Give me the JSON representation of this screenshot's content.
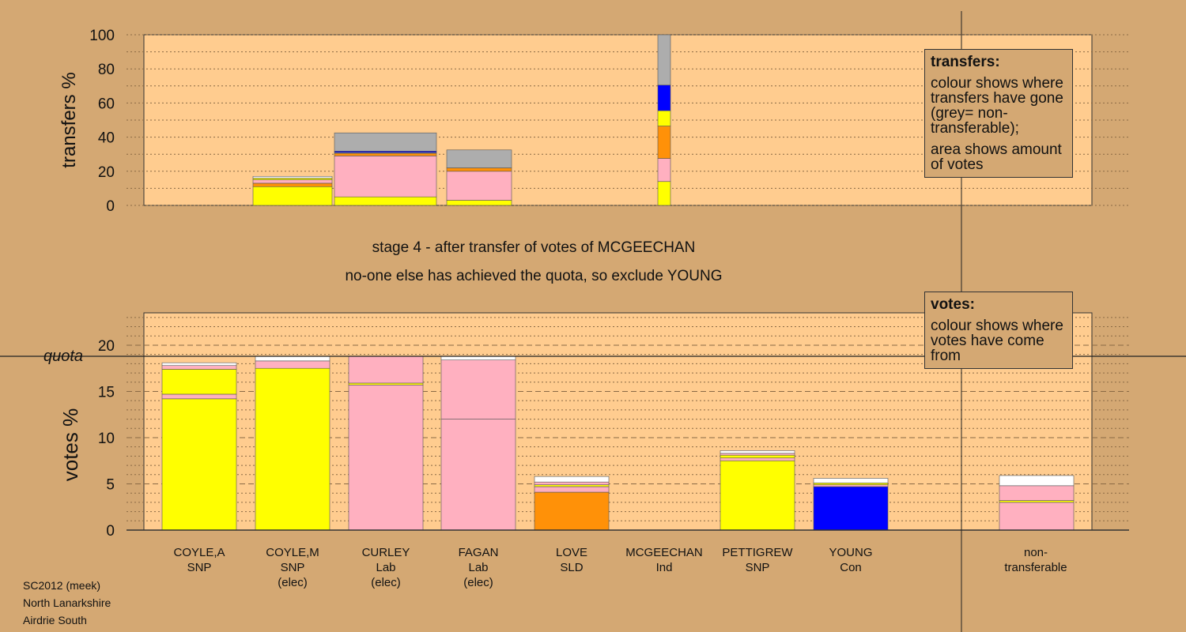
{
  "top_box": {
    "title": "transfers:",
    "line1": "colour shows where transfers have gone (grey= non-transferable);",
    "line2": "area shows amount of votes"
  },
  "bottom_box": {
    "title": "votes:",
    "line1": "colour shows where votes have come from"
  },
  "stage": {
    "line1": "stage 4 - after transfer of votes of MCGEECHAN",
    "line2": "no-one else has achieved the quota, so exclude YOUNG"
  },
  "footer": {
    "line1": "SC2012 (meek)",
    "line2": "North Lanarkshire",
    "line3": "Airdrie South"
  },
  "colors": {
    "background": "#D4A873",
    "plot": "#FFCC8F",
    "SNP": "#FFFF00",
    "Lab": "#FFB0C0",
    "SLD": "#FF9108",
    "Con": "#0000FF",
    "nontransferable": "#ADADAD",
    "other": "#FFFFFF"
  },
  "chart_data": [
    {
      "type": "bar",
      "stacked": true,
      "ylabel": "transfers %",
      "ylim": [
        0,
        100
      ],
      "yticks": [
        0,
        20,
        40,
        60,
        80,
        100
      ],
      "bars": [
        {
          "candidate": "COYLE,M",
          "segments": [
            {
              "color": "SNP",
              "value": 11
            },
            {
              "color": "SLD",
              "value": 2
            },
            {
              "color": "Lab",
              "value": 2
            },
            {
              "color": "SNP",
              "value": 1
            },
            {
              "color": "other",
              "value": 1
            }
          ]
        },
        {
          "candidate": "CURLEY",
          "segments": [
            {
              "color": "SNP",
              "value": 5
            },
            {
              "color": "Lab",
              "value": 24
            },
            {
              "color": "SLD",
              "value": 1.5
            },
            {
              "color": "nontransferable",
              "value": 0.5
            },
            {
              "color": "Con",
              "value": 0.8
            },
            {
              "color": "nontransferable",
              "value": 10.7
            }
          ]
        },
        {
          "candidate": "FAGAN",
          "segments": [
            {
              "color": "SNP",
              "value": 3
            },
            {
              "color": "Lab",
              "value": 17
            },
            {
              "color": "SLD",
              "value": 2
            },
            {
              "color": "nontransferable",
              "value": 10.5
            }
          ]
        },
        {
          "candidate": "MCGEECHAN",
          "segments": [
            {
              "color": "SNP",
              "value": 14
            },
            {
              "color": "Lab",
              "value": 13.5
            },
            {
              "color": "SLD",
              "value": 19
            },
            {
              "color": "SNP",
              "value": 9
            },
            {
              "color": "Con",
              "value": 15
            },
            {
              "color": "nontransferable",
              "value": 29.5
            }
          ]
        }
      ]
    },
    {
      "type": "bar",
      "stacked": true,
      "ylabel": "votes %",
      "ylim": [
        0,
        23.5
      ],
      "yticks": [
        0,
        5,
        10,
        15,
        20
      ],
      "quota": 18.8,
      "quota_label": "quota",
      "categories": [
        {
          "name": "COYLE,A",
          "party": "SNP",
          "status": ""
        },
        {
          "name": "COYLE,M",
          "party": "SNP",
          "status": "(elec)"
        },
        {
          "name": "CURLEY",
          "party": "Lab",
          "status": "(elec)"
        },
        {
          "name": "FAGAN",
          "party": "Lab",
          "status": "(elec)"
        },
        {
          "name": "LOVE",
          "party": "SLD",
          "status": ""
        },
        {
          "name": "MCGEECHAN",
          "party": "Ind",
          "status": ""
        },
        {
          "name": "PETTIGREW",
          "party": "SNP",
          "status": ""
        },
        {
          "name": "YOUNG",
          "party": "Con",
          "status": ""
        }
      ],
      "nontransferable_label": [
        "non-",
        "transferable"
      ],
      "bars": [
        {
          "candidate": "COYLE,A",
          "segments": [
            {
              "color": "SNP",
              "value": 14.2
            },
            {
              "color": "Lab",
              "value": 0.5
            },
            {
              "color": "SNP",
              "value": 2.7
            },
            {
              "color": "Lab",
              "value": 0.4
            },
            {
              "color": "other",
              "value": 0.3
            }
          ]
        },
        {
          "candidate": "COYLE,M",
          "segments": [
            {
              "color": "SNP",
              "value": 17.5
            },
            {
              "color": "Lab",
              "value": 0.8
            },
            {
              "color": "other",
              "value": 0.5
            }
          ]
        },
        {
          "candidate": "CURLEY",
          "segments": [
            {
              "color": "Lab",
              "value": 15.7
            },
            {
              "color": "SNP",
              "value": 0.2
            },
            {
              "color": "Lab",
              "value": 2.9
            }
          ]
        },
        {
          "candidate": "FAGAN",
          "segments": [
            {
              "color": "Lab",
              "value": 12.0
            },
            {
              "color": "Lab",
              "value": 6.4
            },
            {
              "color": "other",
              "value": 0.4
            }
          ]
        },
        {
          "candidate": "LOVE",
          "segments": [
            {
              "color": "SLD",
              "value": 4.1
            },
            {
              "color": "Lab",
              "value": 0.6
            },
            {
              "color": "SNP",
              "value": 0.2
            },
            {
              "color": "Lab",
              "value": 0.3
            },
            {
              "color": "other",
              "value": 0.6
            }
          ]
        },
        {
          "candidate": "MCGEECHAN",
          "segments": []
        },
        {
          "candidate": "PETTIGREW",
          "segments": [
            {
              "color": "SNP",
              "value": 7.5
            },
            {
              "color": "Lab",
              "value": 0.3
            },
            {
              "color": "SNP",
              "value": 0.3
            },
            {
              "color": "Lab",
              "value": 0.2
            },
            {
              "color": "other",
              "value": 0.3
            }
          ]
        },
        {
          "candidate": "YOUNG",
          "segments": [
            {
              "color": "Con",
              "value": 4.7
            },
            {
              "color": "Lab",
              "value": 0.2
            },
            {
              "color": "SNP",
              "value": 0.2
            },
            {
              "color": "other",
              "value": 0.5
            }
          ]
        },
        {
          "candidate": "non-transferable",
          "segments": [
            {
              "color": "Lab",
              "value": 3.0
            },
            {
              "color": "SNP",
              "value": 0.2
            },
            {
              "color": "Lab",
              "value": 1.6
            },
            {
              "color": "other",
              "value": 1.1
            }
          ]
        }
      ]
    }
  ]
}
